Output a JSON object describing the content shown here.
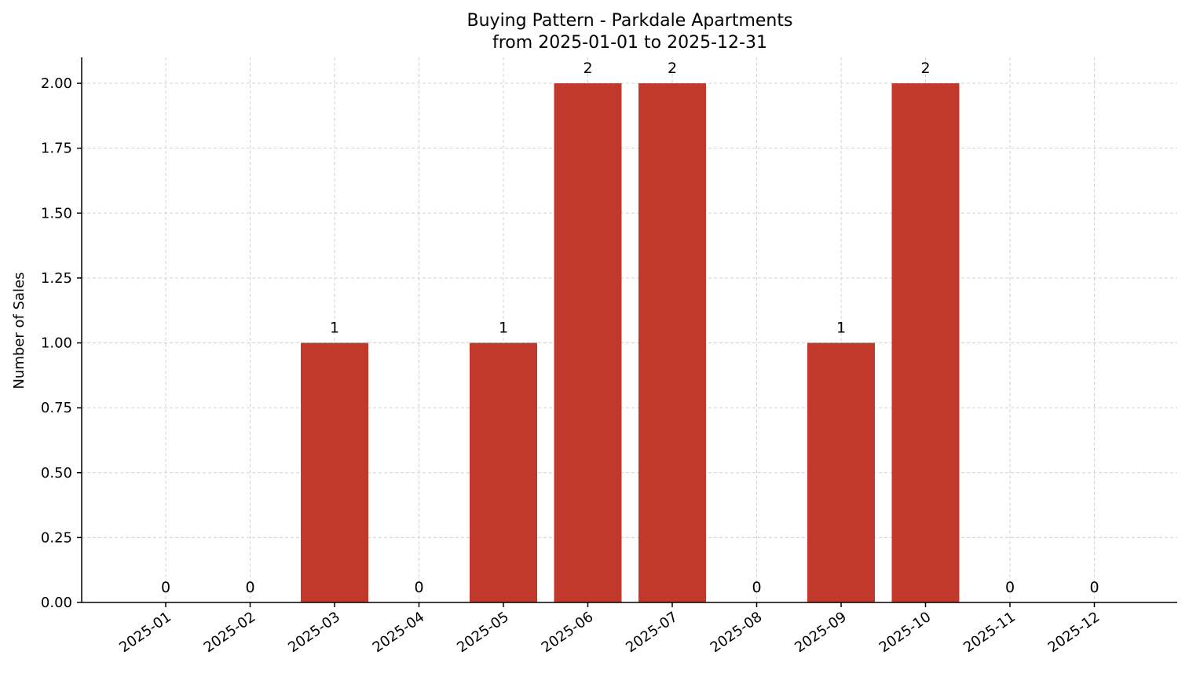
{
  "chart_data": {
    "type": "bar",
    "title_line1": "Buying Pattern - Parkdale Apartments",
    "title_line2": "from 2025-01-01 to 2025-12-31",
    "xlabel": "",
    "ylabel": "Number of Sales",
    "categories": [
      "2025-01",
      "2025-02",
      "2025-03",
      "2025-04",
      "2025-05",
      "2025-06",
      "2025-07",
      "2025-08",
      "2025-09",
      "2025-10",
      "2025-11",
      "2025-12"
    ],
    "values": [
      0,
      0,
      1,
      0,
      1,
      2,
      2,
      0,
      1,
      2,
      0,
      0
    ],
    "data_labels": [
      "0",
      "0",
      "1",
      "0",
      "1",
      "2",
      "2",
      "0",
      "1",
      "2",
      "0",
      "0"
    ],
    "ylim": [
      0,
      2.1
    ],
    "yticks": [
      0,
      0.25,
      0.5,
      0.75,
      1.0,
      1.25,
      1.5,
      1.75,
      2.0
    ],
    "ytick_labels": [
      "0.00",
      "0.25",
      "0.50",
      "0.75",
      "1.00",
      "1.25",
      "1.50",
      "1.75",
      "2.00"
    ],
    "grid": true,
    "bar_color": "#c0392b"
  }
}
